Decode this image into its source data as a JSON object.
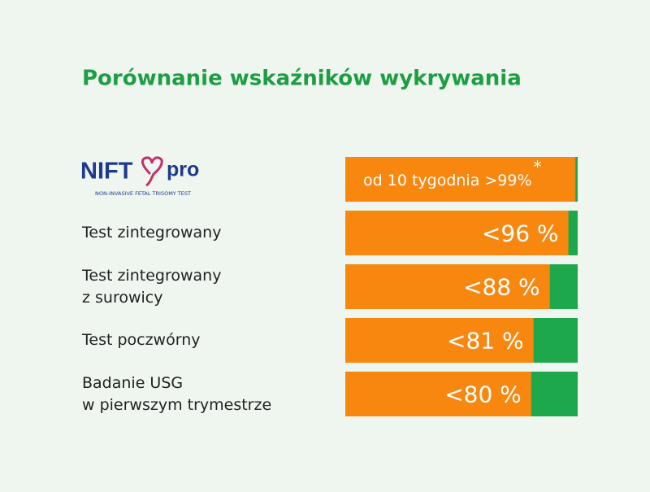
{
  "chart_data": {
    "type": "bar",
    "orientation": "horizontal",
    "title": "Porównanie wskaźników wykrywania",
    "logo": {
      "name": "NIFT",
      "suffix": "pro",
      "tagline": "NON-INVASIVE FETAL TRISOMY TEST"
    },
    "categories": [
      null,
      "Test zintegrowany",
      "Test zintegrowany\nz surowicy",
      "Test poczwórny",
      "Badanie USG\nw pierwszym trymestrze"
    ],
    "values": [
      99,
      96,
      88,
      81,
      80
    ],
    "value_labels": [
      "od 10 tygodnia >99%",
      "<96 %",
      "<88 %",
      "<81 %",
      "<80 %"
    ],
    "footnote_mark": "*",
    "xlim": [
      0,
      100
    ],
    "color": "#f7870f",
    "remainder_color": "#1ea84c"
  }
}
